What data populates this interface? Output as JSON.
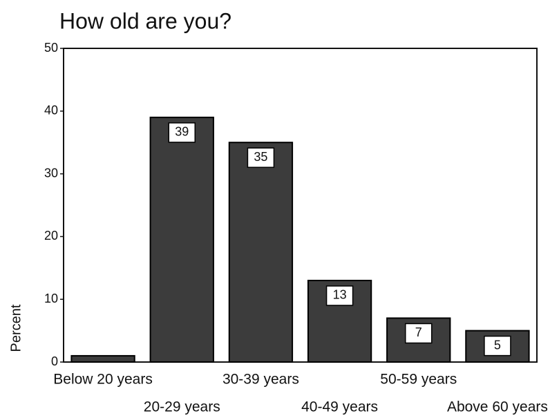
{
  "chart_data": {
    "type": "bar",
    "title": "How old are you?",
    "y_label": "Percent",
    "categories": [
      "Below 20 years",
      "20-29 years",
      "30-39 years",
      "40-49 years",
      "50-59 years",
      "Above 60 years"
    ],
    "values": [
      1,
      39,
      35,
      13,
      7,
      5
    ],
    "value_labels": [
      null,
      "39",
      "35",
      "13",
      "7",
      "5"
    ],
    "color": "#3c3c3c",
    "ylim": [
      0,
      50
    ],
    "yticks": [
      0,
      10,
      20,
      30,
      40,
      50
    ],
    "grid": false
  }
}
